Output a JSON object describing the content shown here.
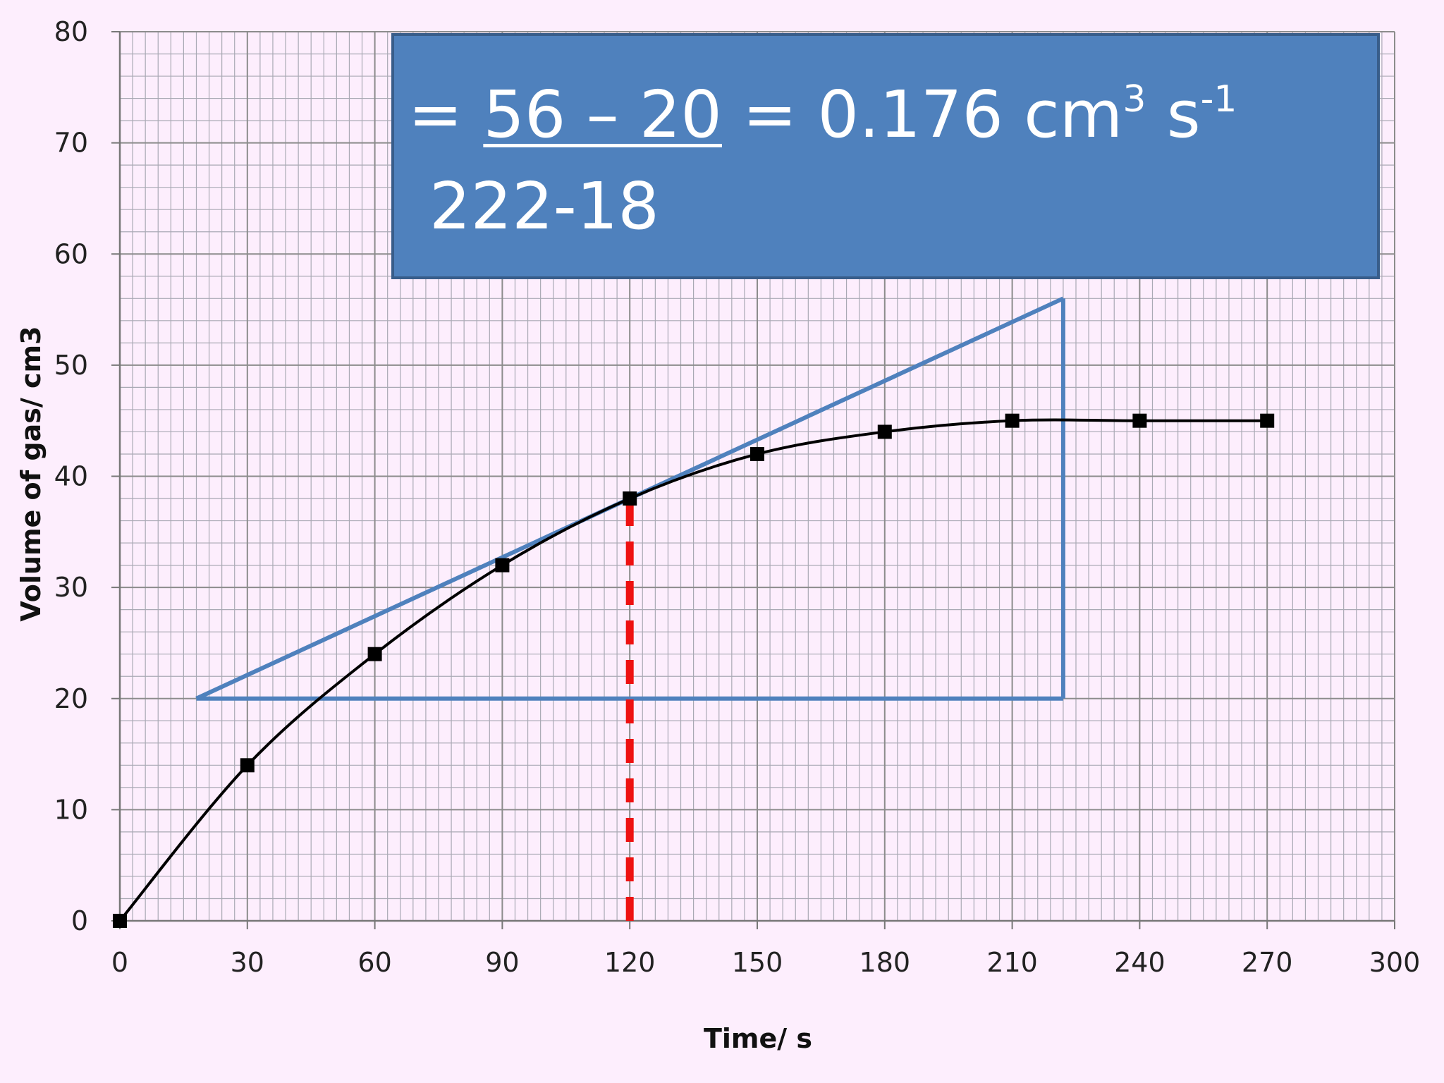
{
  "chart_data": {
    "type": "line",
    "xlabel": "Time/ s",
    "ylabel": "Volume of gas/ cm3",
    "xlim": [
      0,
      300
    ],
    "ylim": [
      0,
      80
    ],
    "x_ticks": [
      "0",
      "30",
      "60",
      "90",
      "120",
      "150",
      "180",
      "210",
      "240",
      "270",
      "300"
    ],
    "y_ticks": [
      "0",
      "10",
      "20",
      "30",
      "40",
      "50",
      "60",
      "70",
      "80"
    ],
    "grid": true,
    "series": [
      {
        "x": [
          0,
          30,
          60,
          90,
          120,
          150,
          180,
          210,
          240,
          270
        ],
        "y": [
          0,
          14,
          24,
          32,
          38,
          42,
          44,
          45,
          45,
          45
        ],
        "color": "#000000",
        "marker": "square"
      }
    ],
    "annotations": {
      "tangent": {
        "from": [
          18,
          20
        ],
        "to": [
          222,
          56
        ],
        "color": "#4f81bd"
      },
      "gradient_triangle": {
        "x1": 18,
        "x2": 222,
        "y1": 20,
        "y2": 56,
        "color": "#4f81bd"
      },
      "dashed_marker": {
        "x": 120,
        "y_from": 0,
        "y_to": 38,
        "color": "#ee1111"
      }
    }
  },
  "callout": {
    "equals1": "= ",
    "numerator": "56 – 20",
    "equals2": "   = 0.176 cm",
    "sup1": "3",
    "unit_s": " s",
    "sup2": "-1",
    "denominator": "222-18",
    "background": "#4f81bd",
    "text_color": "#ffffff"
  }
}
